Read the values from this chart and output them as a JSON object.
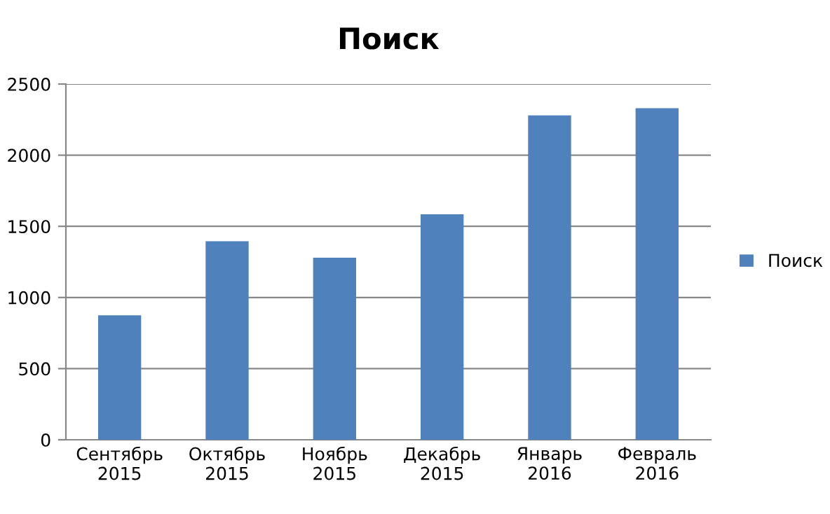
{
  "chart_data": {
    "type": "bar",
    "title": "Поиск",
    "categories": [
      "Сентябрь\n2015",
      "Октябрь\n2015",
      "Ноябрь\n2015",
      "Декабрь\n2015",
      "Январь\n2016",
      "Февраль\n2016"
    ],
    "series": [
      {
        "name": "Поиск",
        "color": "#4f81bd",
        "values": [
          875,
          1395,
          1280,
          1585,
          2280,
          2330
        ]
      }
    ],
    "ylim": [
      0,
      2500
    ],
    "yticks": [
      0,
      500,
      1000,
      1500,
      2000,
      2500
    ],
    "grid": "y",
    "legend": "right"
  }
}
